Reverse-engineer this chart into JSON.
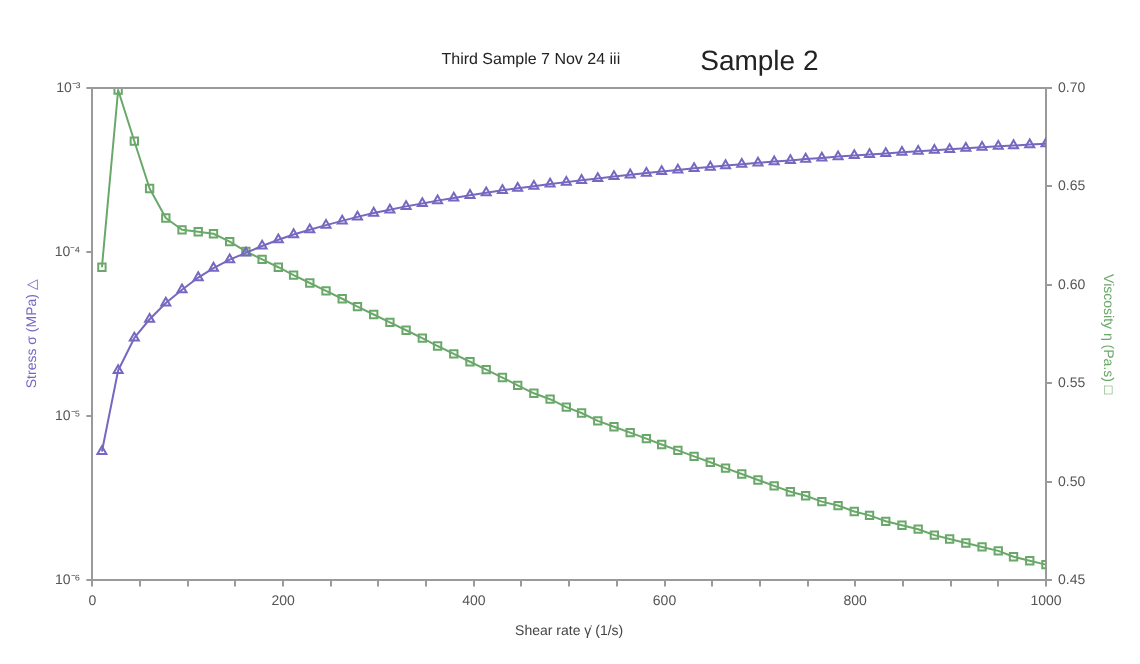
{
  "chart_data": {
    "type": "line",
    "title": "Third Sample 7 Nov 24 iii",
    "annotations": [
      "Sample 2"
    ],
    "xlabel": "Shear rate γ̇ (1/s)",
    "ylabel": "Stress σ (MPa) △",
    "y2label": "Viscosity η (Pa.s) □",
    "log": "y",
    "grid": false,
    "legend": false,
    "xlim": [
      0,
      1000
    ],
    "xticks": [
      0,
      {
        "value": 50,
        "label": null
      },
      {
        "value": 100,
        "label": null
      },
      {
        "value": 150,
        "label": null
      },
      200,
      {
        "value": 250,
        "label": null
      },
      {
        "value": 300,
        "label": null
      },
      {
        "value": 350,
        "label": null
      },
      400,
      {
        "value": 450,
        "label": null
      },
      {
        "value": 500,
        "label": null
      },
      {
        "value": 550,
        "label": null
      },
      600,
      {
        "value": 650,
        "label": null
      },
      {
        "value": 700,
        "label": null
      },
      {
        "value": 750,
        "label": null
      },
      800,
      {
        "value": 850,
        "label": null
      },
      {
        "value": 900,
        "label": null
      },
      {
        "value": 950,
        "label": null
      },
      1000
    ],
    "ylim": [
      1e-06,
      0.001
    ],
    "yticks": [
      {
        "value": 1e-06,
        "label": "10⁻⁶"
      },
      {
        "value": 1e-05,
        "label": "10⁻⁵"
      },
      {
        "value": 0.0001,
        "label": "10⁻⁴"
      },
      {
        "value": 0.001,
        "label": "10⁻³"
      }
    ],
    "y2lim": [
      0.45,
      0.7
    ],
    "y2ticks": [
      0.45,
      {
        "value": 0.5,
        "label": "0.50"
      },
      0.55,
      {
        "value": 0.6,
        "label": "0.60"
      },
      0.65,
      {
        "value": 0.7,
        "label": "0.70"
      }
    ],
    "x": [
      10,
      27,
      44,
      60,
      77,
      94,
      111,
      127,
      144,
      161,
      178,
      195,
      211,
      228,
      245,
      262,
      278,
      295,
      312,
      329,
      346,
      362,
      379,
      396,
      413,
      430,
      446,
      463,
      480,
      497,
      513,
      530,
      547,
      564,
      581,
      597,
      614,
      631,
      648,
      664,
      681,
      698,
      715,
      732,
      748,
      765,
      782,
      799,
      815,
      832,
      849,
      866,
      883,
      899,
      916,
      933,
      950,
      966,
      983,
      1000
    ],
    "series": [
      {
        "color": "#7468c0",
        "marker": "triangle",
        "values": [
          6.1e-06,
          1.9e-05,
          3e-05,
          3.9e-05,
          4.9e-05,
          5.9e-05,
          7e-05,
          8e-05,
          9e-05,
          9.9e-05,
          0.000109,
          0.000119,
          0.000128,
          0.000137,
          0.000146,
          0.000155,
          0.000164,
          0.000173,
          0.000181,
          0.00019,
          0.000198,
          0.000206,
          0.000214,
          0.000222,
          0.00023,
          0.000238,
          0.000245,
          0.000252,
          0.00026,
          0.000267,
          0.000274,
          0.000281,
          0.000289,
          0.000296,
          0.000303,
          0.00031,
          0.000317,
          0.000324,
          0.00033,
          0.000337,
          0.000343,
          0.00035,
          0.000356,
          0.000362,
          0.000369,
          0.000375,
          0.000382,
          0.000388,
          0.000394,
          0.000399,
          0.000406,
          0.000412,
          0.000418,
          0.000423,
          0.00043,
          0.000436,
          0.000442,
          0.000446,
          0.000452,
          0.000458
        ]
      },
      {
        "color": "#6aa86a",
        "marker": "square",
        "axis": "y2",
        "values": [
          0.609,
          0.699,
          0.673,
          0.649,
          0.634,
          0.628,
          0.627,
          0.626,
          0.622,
          0.617,
          0.613,
          0.609,
          0.605,
          0.601,
          0.597,
          0.593,
          0.589,
          0.585,
          0.581,
          0.577,
          0.573,
          0.569,
          0.565,
          0.561,
          0.557,
          0.553,
          0.549,
          0.545,
          0.542,
          0.538,
          0.535,
          0.531,
          0.528,
          0.525,
          0.522,
          0.519,
          0.516,
          0.513,
          0.51,
          0.507,
          0.504,
          0.501,
          0.498,
          0.495,
          0.493,
          0.49,
          0.488,
          0.485,
          0.483,
          0.48,
          0.478,
          0.476,
          0.473,
          0.471,
          0.469,
          0.467,
          0.465,
          0.462,
          0.46,
          0.458
        ]
      }
    ]
  }
}
